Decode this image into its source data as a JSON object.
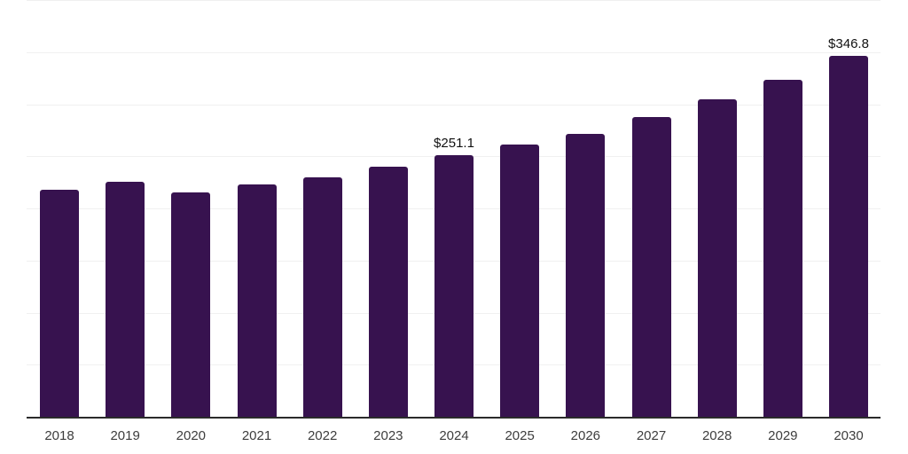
{
  "chart_data": {
    "type": "bar",
    "title": "",
    "xlabel": "",
    "ylabel": "",
    "categories": [
      "2018",
      "2019",
      "2020",
      "2021",
      "2022",
      "2023",
      "2024",
      "2025",
      "2026",
      "2027",
      "2028",
      "2029",
      "2030"
    ],
    "values": [
      218.0,
      225.8,
      215.6,
      222.9,
      230.0,
      239.8,
      251.1,
      261.4,
      271.8,
      287.4,
      304.6,
      323.5,
      346.8
    ],
    "bar_labels": [
      "",
      "",
      "",
      "",
      "",
      "",
      "$251.1",
      "",
      "",
      "",
      "",
      "",
      "$346.8"
    ],
    "ylim": [
      0,
      400
    ],
    "grid_step": 50,
    "grid": true,
    "legend": false,
    "colors": {
      "bar": "#37124f",
      "axis_line": "#2b2b2b",
      "gridline": "#f0f0f0",
      "tick_label": "#3d3d3d",
      "data_label": "#111111",
      "background": "#ffffff"
    }
  }
}
